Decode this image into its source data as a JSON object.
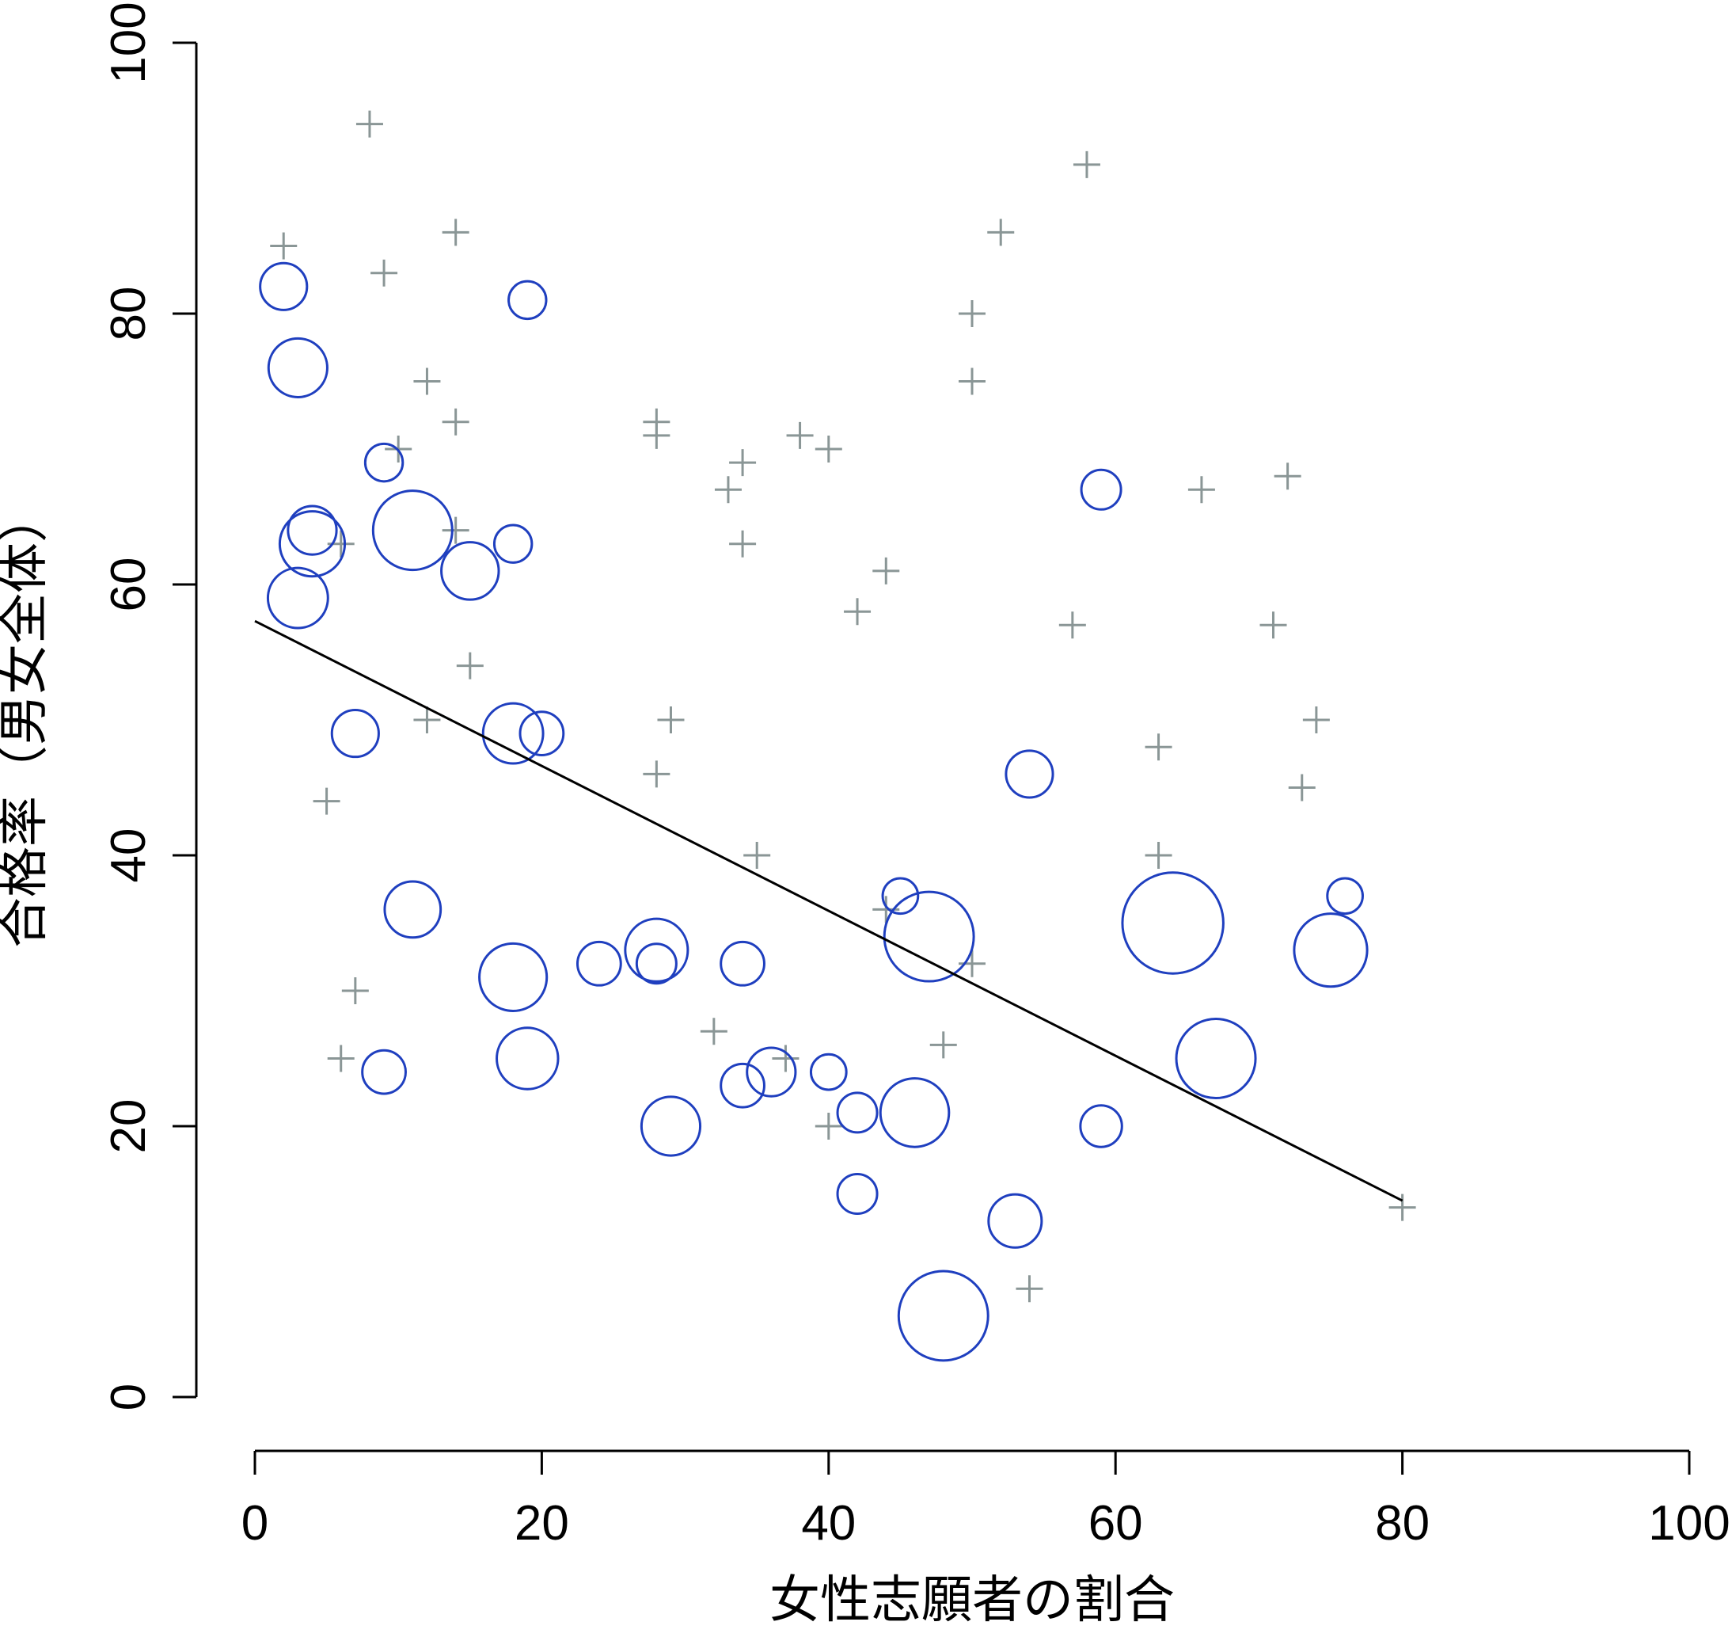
{
  "chart_data": {
    "type": "scatter",
    "title": "",
    "xlabel": "女性志願者の割合",
    "ylabel": "合格率（男女全体）",
    "xlim": [
      0,
      100
    ],
    "ylim": [
      0,
      100
    ],
    "x_ticks": [
      "0",
      "20",
      "40",
      "60",
      "80",
      "100"
    ],
    "y_ticks": [
      "0",
      "20",
      "40",
      "60",
      "80",
      "100"
    ],
    "grid": false,
    "legend": "none",
    "colors": {
      "circles": "#1f3fbf",
      "plus_markers": "#8a9696",
      "line": "#000000",
      "axis": "#000000"
    },
    "series": [
      {
        "marker": "plus",
        "points": [
          {
            "x": 2,
            "y": 85
          },
          {
            "x": 8,
            "y": 94
          },
          {
            "x": 9,
            "y": 83
          },
          {
            "x": 10,
            "y": 70
          },
          {
            "x": 12,
            "y": 75
          },
          {
            "x": 14,
            "y": 86
          },
          {
            "x": 14,
            "y": 72
          },
          {
            "x": 14,
            "y": 64
          },
          {
            "x": 6,
            "y": 63
          },
          {
            "x": 15,
            "y": 54
          },
          {
            "x": 12,
            "y": 50
          },
          {
            "x": 5,
            "y": 44
          },
          {
            "x": 7,
            "y": 30
          },
          {
            "x": 6,
            "y": 25
          },
          {
            "x": 28,
            "y": 72
          },
          {
            "x": 28,
            "y": 71
          },
          {
            "x": 33,
            "y": 67
          },
          {
            "x": 34,
            "y": 69
          },
          {
            "x": 34,
            "y": 63
          },
          {
            "x": 38,
            "y": 71
          },
          {
            "x": 40,
            "y": 70
          },
          {
            "x": 29,
            "y": 50
          },
          {
            "x": 28,
            "y": 46
          },
          {
            "x": 35,
            "y": 40
          },
          {
            "x": 32,
            "y": 27
          },
          {
            "x": 37,
            "y": 25
          },
          {
            "x": 40,
            "y": 20
          },
          {
            "x": 42,
            "y": 58
          },
          {
            "x": 44,
            "y": 61
          },
          {
            "x": 44,
            "y": 36
          },
          {
            "x": 48,
            "y": 26
          },
          {
            "x": 50,
            "y": 32
          },
          {
            "x": 50,
            "y": 80
          },
          {
            "x": 50,
            "y": 75
          },
          {
            "x": 52,
            "y": 86
          },
          {
            "x": 58,
            "y": 91
          },
          {
            "x": 57,
            "y": 57
          },
          {
            "x": 54,
            "y": 8
          },
          {
            "x": 63,
            "y": 48
          },
          {
            "x": 63,
            "y": 40
          },
          {
            "x": 66,
            "y": 67
          },
          {
            "x": 72,
            "y": 68
          },
          {
            "x": 71,
            "y": 57
          },
          {
            "x": 74,
            "y": 50
          },
          {
            "x": 73,
            "y": 45
          },
          {
            "x": 80,
            "y": 14
          }
        ]
      },
      {
        "marker": "circle",
        "points": [
          {
            "x": 2,
            "y": 82,
            "size": 1.4
          },
          {
            "x": 3,
            "y": 76,
            "size": 2.2
          },
          {
            "x": 4,
            "y": 63,
            "size": 2.7
          },
          {
            "x": 4,
            "y": 64,
            "size": 1.5
          },
          {
            "x": 3,
            "y": 59,
            "size": 2.3
          },
          {
            "x": 9,
            "y": 69,
            "size": 0.9
          },
          {
            "x": 11,
            "y": 64,
            "size": 4.0
          },
          {
            "x": 15,
            "y": 61,
            "size": 2.1
          },
          {
            "x": 18,
            "y": 63,
            "size": 0.9
          },
          {
            "x": 19,
            "y": 81,
            "size": 0.9
          },
          {
            "x": 7,
            "y": 49,
            "size": 1.4
          },
          {
            "x": 18,
            "y": 49,
            "size": 2.3
          },
          {
            "x": 20,
            "y": 49,
            "size": 1.2
          },
          {
            "x": 11,
            "y": 36,
            "size": 2.0
          },
          {
            "x": 18,
            "y": 31,
            "size": 2.9
          },
          {
            "x": 19,
            "y": 25,
            "size": 2.4
          },
          {
            "x": 9,
            "y": 24,
            "size": 1.2
          },
          {
            "x": 24,
            "y": 32,
            "size": 1.2
          },
          {
            "x": 28,
            "y": 33,
            "size": 2.5
          },
          {
            "x": 28,
            "y": 32,
            "size": 1.0
          },
          {
            "x": 34,
            "y": 32,
            "size": 1.2
          },
          {
            "x": 29,
            "y": 20,
            "size": 2.2
          },
          {
            "x": 34,
            "y": 23,
            "size": 1.2
          },
          {
            "x": 36,
            "y": 24,
            "size": 1.5
          },
          {
            "x": 40,
            "y": 24,
            "size": 0.8
          },
          {
            "x": 42,
            "y": 21,
            "size": 1.0
          },
          {
            "x": 42,
            "y": 15,
            "size": 1.0
          },
          {
            "x": 45,
            "y": 37,
            "size": 0.8
          },
          {
            "x": 47,
            "y": 34,
            "size": 5.1
          },
          {
            "x": 46,
            "y": 21,
            "size": 3.0
          },
          {
            "x": 48,
            "y": 6,
            "size": 5.1
          },
          {
            "x": 53,
            "y": 13,
            "size": 1.8
          },
          {
            "x": 54,
            "y": 46,
            "size": 1.4
          },
          {
            "x": 59,
            "y": 67,
            "size": 1.0
          },
          {
            "x": 59,
            "y": 20,
            "size": 1.1
          },
          {
            "x": 64,
            "y": 35,
            "size": 6.5
          },
          {
            "x": 67,
            "y": 25,
            "size": 4.0
          },
          {
            "x": 75,
            "y": 33,
            "size": 3.4
          },
          {
            "x": 76,
            "y": 37,
            "size": 0.8
          }
        ]
      },
      {
        "marker": "line",
        "points": [
          {
            "x": 0,
            "y": 57.3
          },
          {
            "x": 80,
            "y": 14.5
          }
        ]
      }
    ]
  }
}
